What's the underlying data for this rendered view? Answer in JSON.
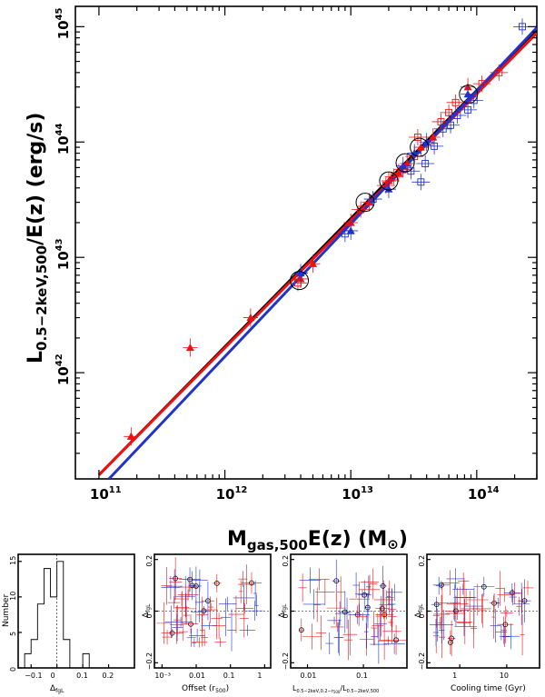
{
  "main_chart": {
    "type": "scatter",
    "xlabel_main": "M",
    "xlabel_sub": "gas,500",
    "xlabel_rest": "E(z)  (M",
    "xlabel_sun": "⊙",
    "xlabel_close": ")",
    "ylabel_main": "L",
    "ylabel_sub": "0.5−2keV,500",
    "ylabel_rest": "/E(z)  (erg/s)",
    "x_ticks": [
      {
        "base": "10",
        "exp": "11",
        "v": 100000000000.0
      },
      {
        "base": "10",
        "exp": "12",
        "v": 1000000000000.0
      },
      {
        "base": "10",
        "exp": "13",
        "v": 10000000000000.0
      },
      {
        "base": "10",
        "exp": "14",
        "v": 100000000000000.0
      }
    ],
    "y_ticks": [
      {
        "base": "10",
        "exp": "42",
        "v": 1e+42
      },
      {
        "base": "10",
        "exp": "43",
        "v": 1e+43
      },
      {
        "base": "10",
        "exp": "44",
        "v": 1e+44
      },
      {
        "base": "10",
        "exp": "45",
        "v": 1e+45
      }
    ],
    "xlim": [
      65000000000.0,
      300000000000000.0
    ],
    "ylim": [
      1.2e+41,
      1.5e+45
    ],
    "colors": {
      "red": "#ee1111",
      "blue": "#2233cc",
      "black": "#000000"
    }
  },
  "chart_data": [
    {
      "type": "scatter",
      "xscale": "log",
      "yscale": "log",
      "xlim": [
        65000000000.0,
        300000000000000.0
      ],
      "ylim": [
        1.2e+41,
        1.5e+45
      ],
      "fit_lines": [
        {
          "color": "black",
          "x": [
            100000000000.0,
            300000000000000.0
          ],
          "y": [
            1.3e+41,
            9.5e+44
          ]
        },
        {
          "color": "red",
          "x": [
            100000000000.0,
            300000000000000.0
          ],
          "y": [
            1.3e+41,
            8.8e+44
          ]
        },
        {
          "color": "blue",
          "x": [
            120000000000.0,
            300000000000000.0
          ],
          "y": [
            1.2e+41,
            9.8e+44
          ]
        }
      ],
      "series": [
        {
          "color": "red",
          "marker": "triangle",
          "points": [
            [
              180000000000.0,
              2.8e+41
            ],
            [
              530000000000.0,
              1.65e+42
            ],
            [
              1600000000000.0,
              3e+42
            ],
            [
              4000000000000.0,
              6.5e+42
            ],
            [
              5000000000000.0,
              8.8e+42
            ],
            [
              10000000000000.0,
              2e+43
            ],
            [
              14000000000000.0,
              3e+43
            ],
            [
              20000000000000.0,
              4.6e+43
            ],
            [
              24000000000000.0,
              5.4e+43
            ],
            [
              28000000000000.0,
              6.5e+43
            ],
            [
              36000000000000.0,
              9e+43
            ],
            [
              45000000000000.0,
              1.1e+44
            ],
            [
              85000000000000.0,
              3e+44
            ]
          ]
        },
        {
          "color": "red",
          "marker": "cross",
          "points": [
            [
              3800000000000.0,
              6e+42
            ],
            [
              12000000000000.0,
              2.6e+43
            ],
            [
              19000000000000.0,
              4.2e+43
            ],
            [
              22000000000000.0,
              5e+43
            ],
            [
              26000000000000.0,
              5.8e+43
            ],
            [
              32000000000000.0,
              7.5e+43
            ],
            [
              34000000000000.0,
              1.1e+44
            ],
            [
              52000000000000.0,
              1.5e+44
            ],
            [
              60000000000000.0,
              1.8e+44
            ],
            [
              68000000000000.0,
              2.2e+44
            ],
            [
              110000000000000.0,
              3.2e+44
            ],
            [
              150000000000000.0,
              4e+44
            ]
          ]
        },
        {
          "color": "blue",
          "marker": "triangle",
          "points": [
            [
              4000000000000.0,
              7.3e+42
            ],
            [
              10000000000000.0,
              1.7e+43
            ],
            [
              20000000000000.0,
              3.9e+43
            ],
            [
              26000000000000.0,
              6.2e+43
            ],
            [
              32000000000000.0,
              8e+43
            ],
            [
              40000000000000.0,
              1e+44
            ],
            [
              85000000000000.0,
              2.6e+44
            ]
          ]
        },
        {
          "color": "blue",
          "marker": "cross",
          "points": [
            [
              9000000000000.0,
              1.6e+43
            ],
            [
              15000000000000.0,
              3.2e+43
            ],
            [
              30000000000000.0,
              5.6e+43
            ],
            [
              36000000000000.0,
              4.5e+43
            ],
            [
              39000000000000.0,
              6.5e+43
            ],
            [
              46000000000000.0,
              9.2e+43
            ],
            [
              54000000000000.0,
              1.3e+44
            ],
            [
              62000000000000.0,
              1.4e+44
            ],
            [
              70000000000000.0,
              1.7e+44
            ],
            [
              85000000000000.0,
              1.9e+44
            ],
            [
              95000000000000.0,
              2.3e+44
            ],
            [
              230000000000000.0,
              1e+45
            ]
          ]
        },
        {
          "color": "black",
          "marker": "circle",
          "points": [
            [
              3900000000000.0,
              6.3e+42
            ],
            [
              13000000000000.0,
              3e+43
            ],
            [
              20000000000000.0,
              4.6e+43
            ],
            [
              27000000000000.0,
              6.6e+43
            ],
            [
              35000000000000.0,
              9e+43
            ],
            [
              86000000000000.0,
              2.6e+44
            ]
          ]
        }
      ]
    },
    {
      "type": "bar",
      "ylabel": "Number",
      "xlabel": "Δ",
      "xlabel_sub": "fgL",
      "xlim": [
        -0.15,
        0.3
      ],
      "ylim": [
        0,
        16
      ],
      "x_ticks": [
        "−0.1",
        "0",
        "0.1",
        "0.2"
      ],
      "y_ticks": [
        "0",
        "5",
        "10",
        "15"
      ],
      "bins": [
        -0.125,
        -0.1,
        -0.075,
        -0.05,
        -0.025,
        0,
        0.025,
        0.05,
        0.075,
        0.1,
        0.125
      ],
      "values": [
        2,
        4,
        9,
        14,
        10,
        15,
        4,
        0,
        0,
        2,
        0
      ]
    },
    {
      "type": "scatter",
      "xscale": "log",
      "ylabel": "Δ",
      "ylabel_sub": "fgL",
      "xlabel": "Offset (r",
      "xlabel_sub": "500",
      "xlabel_close": ")",
      "xlim": [
        0.0006,
        1.5
      ],
      "ylim": [
        -0.22,
        0.22
      ],
      "x_ticks": [
        "10⁻³",
        "0.01",
        "0.1",
        "1"
      ],
      "y_ticks": [
        "−0.2",
        "0",
        "0.2"
      ]
    },
    {
      "type": "scatter",
      "xscale": "log",
      "ylabel": "Δ",
      "ylabel_sub": "fgL",
      "xlabel": "L",
      "xlabel_sub1": "0.5−2keV,0.2−r",
      "xlabel_sub1b": "500",
      "xlabel_mid": "/L",
      "xlabel_sub2": "0.5−2keV,500",
      "xlim": [
        0.005,
        0.6
      ],
      "ylim": [
        -0.22,
        0.22
      ],
      "x_ticks": [
        "0.01",
        "0.1"
      ],
      "y_ticks": [
        "−0.2",
        "0",
        "0.2"
      ]
    },
    {
      "type": "scatter",
      "xscale": "log",
      "ylabel": "Δ",
      "ylabel_sub": "fgL",
      "xlabel": "Cooling time (Gyr)",
      "xlim": [
        0.2,
        50
      ],
      "ylim": [
        -0.22,
        0.22
      ],
      "x_ticks": [
        "1",
        "10"
      ],
      "y_ticks": [
        "−0.2",
        "0",
        "0.2"
      ]
    }
  ]
}
